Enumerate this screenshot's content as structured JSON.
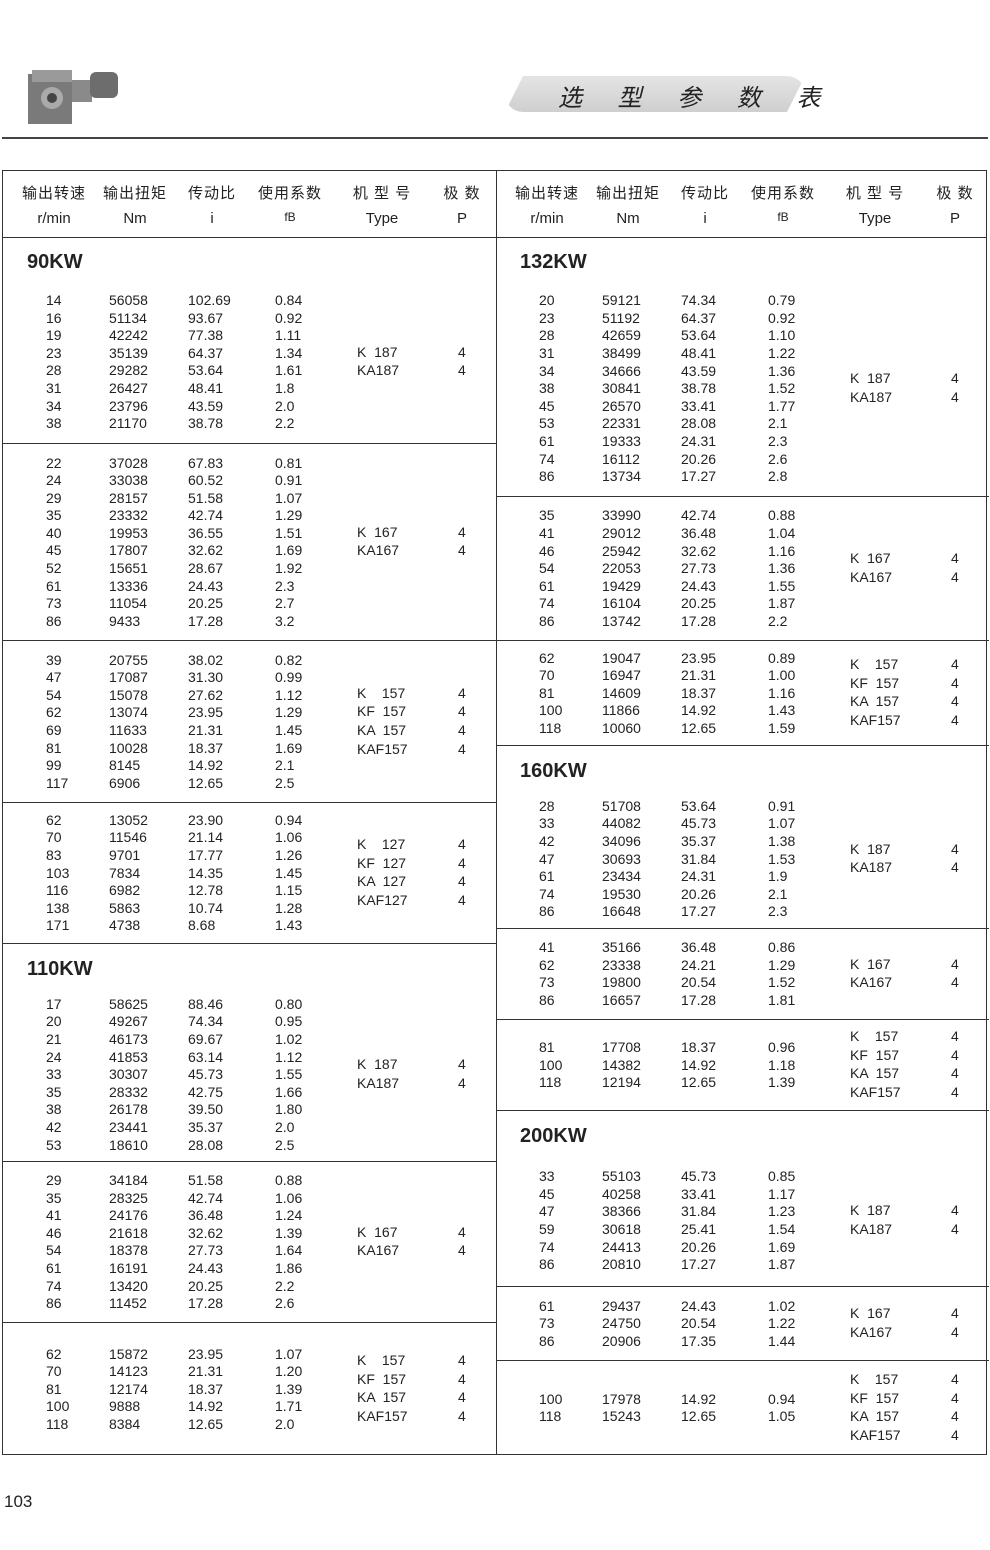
{
  "header": {
    "banner_title": "选 型 参 数 表",
    "logo_icon": "gear-motor-image"
  },
  "columns": [
    {
      "cn": "输出转速",
      "en": "r/min"
    },
    {
      "cn": "输出扭矩",
      "en": "Nm"
    },
    {
      "cn": "传动比",
      "en": "i"
    },
    {
      "cn": "使用系数",
      "en": "fB"
    },
    {
      "cn": "机 型 号",
      "en": "Type"
    },
    {
      "cn": "极  数",
      "en": "P"
    }
  ],
  "left": [
    {
      "title": "90KW",
      "rows": [
        [
          "14",
          "56058",
          "102.69",
          "0.84"
        ],
        [
          "16",
          "51134",
          "93.67",
          "0.92"
        ],
        [
          "19",
          "42242",
          "77.38",
          "1.11"
        ],
        [
          "23",
          "35139",
          "64.37",
          "1.34"
        ],
        [
          "28",
          "29282",
          "53.64",
          "1.61"
        ],
        [
          "31",
          "26427",
          "48.41",
          "1.8"
        ],
        [
          "34",
          "23796",
          "43.59",
          "2.0"
        ],
        [
          "38",
          "21170",
          "38.78",
          "2.2"
        ]
      ],
      "types": [
        [
          "K  187",
          "4"
        ],
        [
          "KA187",
          "4"
        ]
      ]
    },
    {
      "rows": [
        [
          "22",
          "37028",
          "67.83",
          "0.81"
        ],
        [
          "24",
          "33038",
          "60.52",
          "0.91"
        ],
        [
          "29",
          "28157",
          "51.58",
          "1.07"
        ],
        [
          "35",
          "23332",
          "42.74",
          "1.29"
        ],
        [
          "40",
          "19953",
          "36.55",
          "1.51"
        ],
        [
          "45",
          "17807",
          "32.62",
          "1.69"
        ],
        [
          "52",
          "15651",
          "28.67",
          "1.92"
        ],
        [
          "61",
          "13336",
          "24.43",
          "2.3"
        ],
        [
          "73",
          "11054",
          "20.25",
          "2.7"
        ],
        [
          "86",
          "9433",
          "17.28",
          "3.2"
        ]
      ],
      "types": [
        [
          "K  167",
          "4"
        ],
        [
          "KA167",
          "4"
        ]
      ]
    },
    {
      "rows": [
        [
          "39",
          "20755",
          "38.02",
          "0.82"
        ],
        [
          "47",
          "17087",
          "31.30",
          "0.99"
        ],
        [
          "54",
          "15078",
          "27.62",
          "1.12"
        ],
        [
          "62",
          "13074",
          "23.95",
          "1.29"
        ],
        [
          "69",
          "11633",
          "21.31",
          "1.45"
        ],
        [
          "81",
          "10028",
          "18.37",
          "1.69"
        ],
        [
          "99",
          "8145",
          "14.92",
          "2.1"
        ],
        [
          "117",
          "6906",
          "12.65",
          "2.5"
        ]
      ],
      "types": [
        [
          "K    157",
          "4"
        ],
        [
          "KF  157",
          "4"
        ],
        [
          "KA  157",
          "4"
        ],
        [
          "KAF157",
          "4"
        ]
      ]
    },
    {
      "rows": [
        [
          "62",
          "13052",
          "23.90",
          "0.94"
        ],
        [
          "70",
          "11546",
          "21.14",
          "1.06"
        ],
        [
          "83",
          "9701",
          "17.77",
          "1.26"
        ],
        [
          "103",
          "7834",
          "14.35",
          "1.45"
        ],
        [
          "116",
          "6982",
          "12.78",
          "1.15"
        ],
        [
          "138",
          "5863",
          "10.74",
          "1.28"
        ],
        [
          "171",
          "4738",
          "8.68",
          "1.43"
        ]
      ],
      "types": [
        [
          "K    127",
          "4"
        ],
        [
          "KF  127",
          "4"
        ],
        [
          "KA  127",
          "4"
        ],
        [
          "KAF127",
          "4"
        ]
      ]
    },
    {
      "title": "110KW",
      "rows": [
        [
          "17",
          "58625",
          "88.46",
          "0.80"
        ],
        [
          "20",
          "49267",
          "74.34",
          "0.95"
        ],
        [
          "21",
          "46173",
          "69.67",
          "1.02"
        ],
        [
          "24",
          "41853",
          "63.14",
          "1.12"
        ],
        [
          "33",
          "30307",
          "45.73",
          "1.55"
        ],
        [
          "35",
          "28332",
          "42.75",
          "1.66"
        ],
        [
          "38",
          "26178",
          "39.50",
          "1.80"
        ],
        [
          "42",
          "23441",
          "35.37",
          "2.0"
        ],
        [
          "53",
          "18610",
          "28.08",
          "2.5"
        ]
      ],
      "types": [
        [
          "K  187",
          "4"
        ],
        [
          "KA187",
          "4"
        ]
      ]
    },
    {
      "rows": [
        [
          "29",
          "34184",
          "51.58",
          "0.88"
        ],
        [
          "35",
          "28325",
          "42.74",
          "1.06"
        ],
        [
          "41",
          "24176",
          "36.48",
          "1.24"
        ],
        [
          "46",
          "21618",
          "32.62",
          "1.39"
        ],
        [
          "54",
          "18378",
          "27.73",
          "1.64"
        ],
        [
          "61",
          "16191",
          "24.43",
          "1.86"
        ],
        [
          "74",
          "13420",
          "20.25",
          "2.2"
        ],
        [
          "86",
          "11452",
          "17.28",
          "2.6"
        ]
      ],
      "types": [
        [
          "K  167",
          "4"
        ],
        [
          "KA167",
          "4"
        ]
      ]
    },
    {
      "rows": [
        [
          "62",
          "15872",
          "23.95",
          "1.07"
        ],
        [
          "70",
          "14123",
          "21.31",
          "1.20"
        ],
        [
          "81",
          "12174",
          "18.37",
          "1.39"
        ],
        [
          "100",
          "9888",
          "14.92",
          "1.71"
        ],
        [
          "118",
          "8384",
          "12.65",
          "2.0"
        ]
      ],
      "types": [
        [
          "K    157",
          "4"
        ],
        [
          "KF  157",
          "4"
        ],
        [
          "KA  157",
          "4"
        ],
        [
          "KAF157",
          "4"
        ]
      ]
    }
  ],
  "right": [
    {
      "title": "132KW",
      "rows": [
        [
          "20",
          "59121",
          "74.34",
          "0.79"
        ],
        [
          "23",
          "51192",
          "64.37",
          "0.92"
        ],
        [
          "28",
          "42659",
          "53.64",
          "1.10"
        ],
        [
          "31",
          "38499",
          "48.41",
          "1.22"
        ],
        [
          "34",
          "34666",
          "43.59",
          "1.36"
        ],
        [
          "38",
          "30841",
          "38.78",
          "1.52"
        ],
        [
          "45",
          "26570",
          "33.41",
          "1.77"
        ],
        [
          "53",
          "22331",
          "28.08",
          "2.1"
        ],
        [
          "61",
          "19333",
          "24.31",
          "2.3"
        ],
        [
          "74",
          "16112",
          "20.26",
          "2.6"
        ],
        [
          "86",
          "13734",
          "17.27",
          "2.8"
        ]
      ],
      "types": [
        [
          "K  187",
          "4"
        ],
        [
          "KA187",
          "4"
        ]
      ]
    },
    {
      "rows": [
        [
          "35",
          "33990",
          "42.74",
          "0.88"
        ],
        [
          "41",
          "29012",
          "36.48",
          "1.04"
        ],
        [
          "46",
          "25942",
          "32.62",
          "1.16"
        ],
        [
          "54",
          "22053",
          "27.73",
          "1.36"
        ],
        [
          "61",
          "19429",
          "24.43",
          "1.55"
        ],
        [
          "74",
          "16104",
          "20.25",
          "1.87"
        ],
        [
          "86",
          "13742",
          "17.28",
          "2.2"
        ]
      ],
      "types": [
        [
          "K  167",
          "4"
        ],
        [
          "KA167",
          "4"
        ]
      ]
    },
    {
      "rows": [
        [
          "62",
          "19047",
          "23.95",
          "0.89"
        ],
        [
          "70",
          "16947",
          "21.31",
          "1.00"
        ],
        [
          "81",
          "14609",
          "18.37",
          "1.16"
        ],
        [
          "100",
          "11866",
          "14.92",
          "1.43"
        ],
        [
          "118",
          "10060",
          "12.65",
          "1.59"
        ]
      ],
      "types": [
        [
          "K    157",
          "4"
        ],
        [
          "KF  157",
          "4"
        ],
        [
          "KA  157",
          "4"
        ],
        [
          "KAF157",
          "4"
        ]
      ]
    },
    {
      "title": "160KW",
      "rows": [
        [
          "28",
          "51708",
          "53.64",
          "0.91"
        ],
        [
          "33",
          "44082",
          "45.73",
          "1.07"
        ],
        [
          "42",
          "34096",
          "35.37",
          "1.38"
        ],
        [
          "47",
          "30693",
          "31.84",
          "1.53"
        ],
        [
          "61",
          "23434",
          "24.31",
          "1.9"
        ],
        [
          "74",
          "19530",
          "20.26",
          "2.1"
        ],
        [
          "86",
          "16648",
          "17.27",
          "2.3"
        ]
      ],
      "types": [
        [
          "K  187",
          "4"
        ],
        [
          "KA187",
          "4"
        ]
      ]
    },
    {
      "rows": [
        [
          "41",
          "35166",
          "36.48",
          "0.86"
        ],
        [
          "62",
          "23338",
          "24.21",
          "1.29"
        ],
        [
          "73",
          "19800",
          "20.54",
          "1.52"
        ],
        [
          "86",
          "16657",
          "17.28",
          "1.81"
        ]
      ],
      "types": [
        [
          "K  167",
          "4"
        ],
        [
          "KA167",
          "4"
        ]
      ]
    },
    {
      "rows": [
        [
          "81",
          "17708",
          "18.37",
          "0.96"
        ],
        [
          "100",
          "14382",
          "14.92",
          "1.18"
        ],
        [
          "118",
          "12194",
          "12.65",
          "1.39"
        ]
      ],
      "types": [
        [
          "K    157",
          "4"
        ],
        [
          "KF  157",
          "4"
        ],
        [
          "KA  157",
          "4"
        ],
        [
          "KAF157",
          "4"
        ]
      ]
    },
    {
      "title": "200KW",
      "rows": [
        [
          "33",
          "55103",
          "45.73",
          "0.85"
        ],
        [
          "45",
          "40258",
          "33.41",
          "1.17"
        ],
        [
          "47",
          "38366",
          "31.84",
          "1.23"
        ],
        [
          "59",
          "30618",
          "25.41",
          "1.54"
        ],
        [
          "74",
          "24413",
          "20.26",
          "1.69"
        ],
        [
          "86",
          "20810",
          "17.27",
          "1.87"
        ]
      ],
      "types": [
        [
          "K  187",
          "4"
        ],
        [
          "KA187",
          "4"
        ]
      ]
    },
    {
      "rows": [
        [
          "61",
          "29437",
          "24.43",
          "1.02"
        ],
        [
          "73",
          "24750",
          "20.54",
          "1.22"
        ],
        [
          "86",
          "20906",
          "17.35",
          "1.44"
        ]
      ],
      "types": [
        [
          "K  167",
          "4"
        ],
        [
          "KA167",
          "4"
        ]
      ]
    },
    {
      "rows": [
        [
          "100",
          "17978",
          "14.92",
          "0.94"
        ],
        [
          "118",
          "15243",
          "12.65",
          "1.05"
        ]
      ],
      "types": [
        [
          "K    157",
          "4"
        ],
        [
          "KF  157",
          "4"
        ],
        [
          "KA  157",
          "4"
        ],
        [
          "KAF157",
          "4"
        ]
      ]
    }
  ],
  "page_number": "103"
}
